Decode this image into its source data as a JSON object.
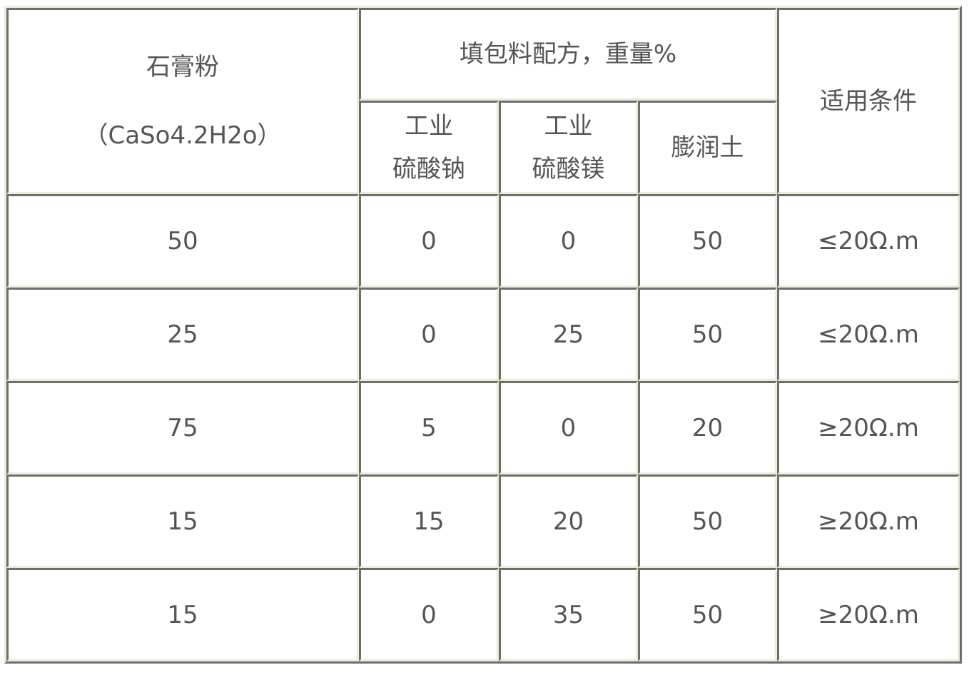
{
  "headers": {
    "gypsum": [
      "石膏粉",
      "（CaSo4.2H2o）"
    ],
    "filler_group": "填包料配方，重量%",
    "sodium_sulfate": [
      "工业",
      "硫酸钠"
    ],
    "magnesium_sulfate": [
      "工业",
      "硫酸镁"
    ],
    "bentonite": "膨润土",
    "condition": "适用条件"
  },
  "rows": [
    [
      "50",
      "0",
      "0",
      "50",
      "≤20Ω.m"
    ],
    [
      "25",
      "0",
      "25",
      "50",
      "≤20Ω.m"
    ],
    [
      "75",
      "5",
      "0",
      "20",
      "≥20Ω.m"
    ],
    [
      "15",
      "15",
      "20",
      "50",
      "≥20Ω.m"
    ],
    [
      "15",
      "0",
      "35",
      "50",
      "≥20Ω.m"
    ]
  ],
  "colors": {
    "text": "#555555",
    "border_dark": "#6f6f68",
    "border_light": "#ecebdc"
  }
}
